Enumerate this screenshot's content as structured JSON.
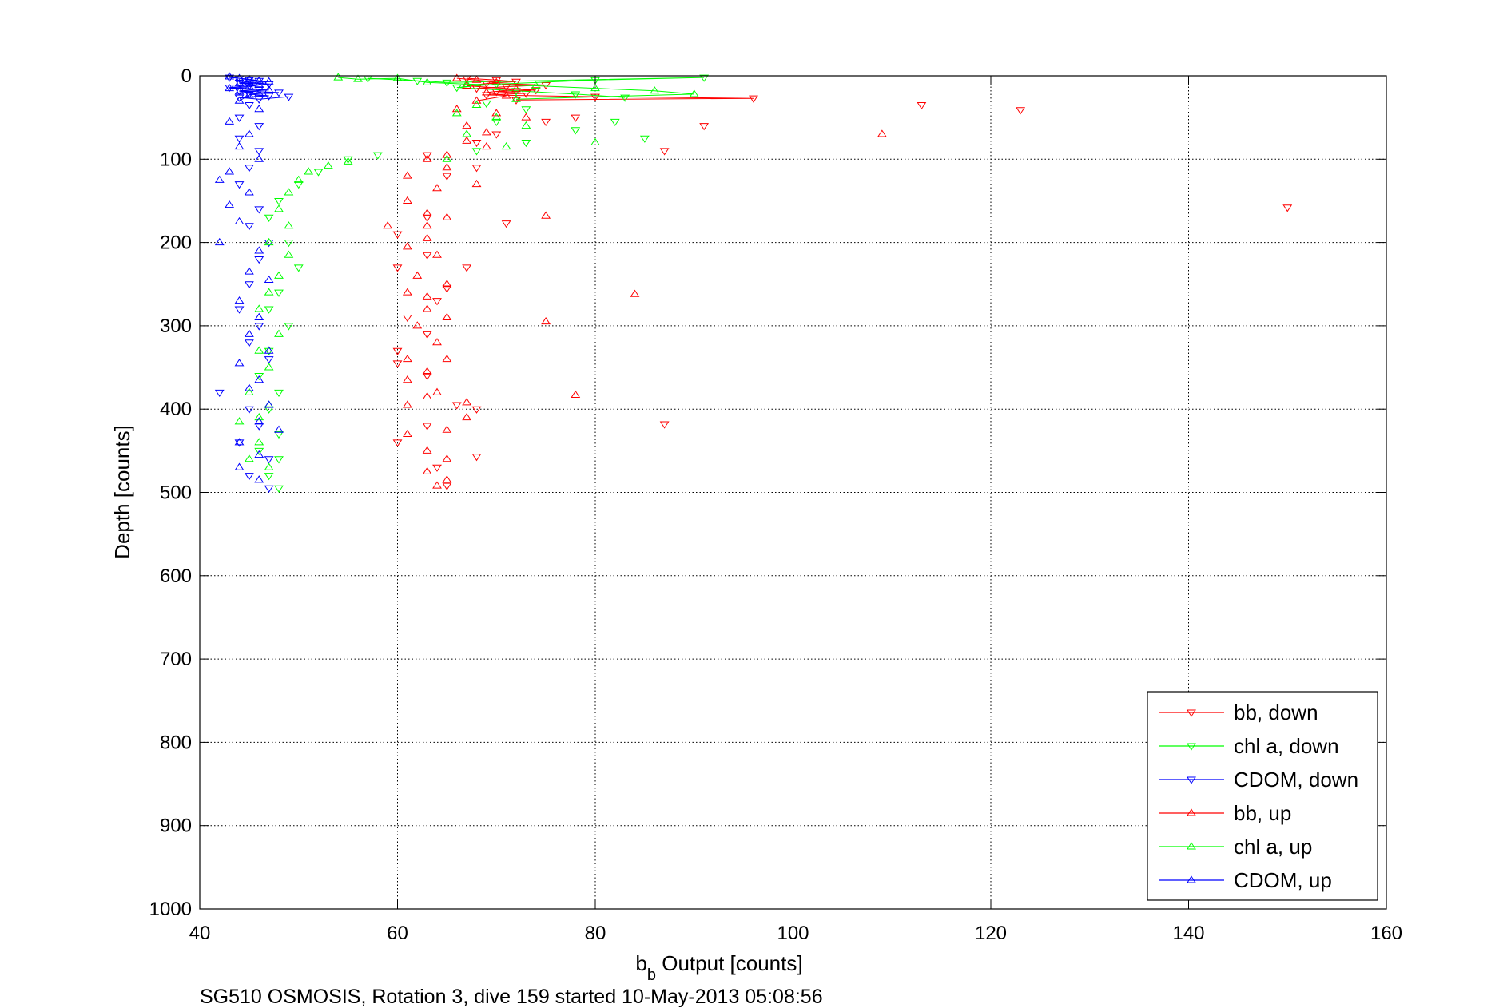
{
  "chart_data": {
    "type": "scatter",
    "xlabel_main": "b",
    "xlabel_sub": "b",
    "xlabel_rest": " Output [counts]",
    "ylabel": "Depth [counts]",
    "caption": "SG510 OSMOSIS, Rotation 3, dive 159 started 10-May-2013 05:08:56",
    "xlim": [
      40,
      160
    ],
    "ylim": [
      0,
      1000
    ],
    "y_reversed": true,
    "xticks": [
      "40",
      "60",
      "80",
      "100",
      "120",
      "140",
      "160"
    ],
    "yticks": [
      "0",
      "100",
      "200",
      "300",
      "400",
      "500",
      "600",
      "700",
      "800",
      "900",
      "1000"
    ],
    "grid": true,
    "legend_position": "bottom-right",
    "colors": {
      "red": "#ff0000",
      "green": "#00ff00",
      "blue": "#0000ff"
    },
    "series": [
      {
        "name": "bb, down",
        "color": "#ff0000",
        "marker": "triangle-down",
        "points": [
          [
            67,
            3
          ],
          [
            70,
            5
          ],
          [
            72,
            7
          ],
          [
            69,
            9
          ],
          [
            75,
            11
          ],
          [
            71,
            13
          ],
          [
            68,
            15
          ],
          [
            74,
            17
          ],
          [
            70,
            19
          ],
          [
            73,
            21
          ],
          [
            69,
            23
          ],
          [
            80,
            25
          ],
          [
            96,
            27
          ],
          [
            72,
            29
          ],
          [
            113,
            35
          ],
          [
            123,
            41
          ],
          [
            78,
            50
          ],
          [
            75,
            55
          ],
          [
            91,
            60
          ],
          [
            70,
            70
          ],
          [
            68,
            80
          ],
          [
            87,
            90
          ],
          [
            63,
            95
          ],
          [
            68,
            110
          ],
          [
            65,
            120
          ],
          [
            150,
            158
          ],
          [
            63,
            170
          ],
          [
            71,
            177
          ],
          [
            60,
            190
          ],
          [
            63,
            215
          ],
          [
            67,
            230
          ],
          [
            60,
            230
          ],
          [
            65,
            255
          ],
          [
            64,
            270
          ],
          [
            61,
            290
          ],
          [
            63,
            310
          ],
          [
            60,
            330
          ],
          [
            60,
            345
          ],
          [
            63,
            360
          ],
          [
            66,
            395
          ],
          [
            68,
            400
          ],
          [
            63,
            420
          ],
          [
            60,
            440
          ],
          [
            87,
            418
          ],
          [
            68,
            457
          ],
          [
            64,
            470
          ],
          [
            65,
            492
          ]
        ]
      },
      {
        "name": "chl a, down",
        "color": "#00ff00",
        "marker": "triangle-down",
        "points": [
          [
            57,
            3
          ],
          [
            62,
            6
          ],
          [
            65,
            8
          ],
          [
            91,
            2
          ],
          [
            80,
            5
          ],
          [
            70,
            10
          ],
          [
            66,
            14
          ],
          [
            72,
            18
          ],
          [
            78,
            22
          ],
          [
            83,
            26
          ],
          [
            69,
            33
          ],
          [
            73,
            40
          ],
          [
            70,
            55
          ],
          [
            82,
            55
          ],
          [
            78,
            65
          ],
          [
            85,
            75
          ],
          [
            73,
            80
          ],
          [
            68,
            90
          ],
          [
            58,
            95
          ],
          [
            55,
            100
          ],
          [
            52,
            115
          ],
          [
            50,
            130
          ],
          [
            48,
            150
          ],
          [
            47,
            170
          ],
          [
            49,
            200
          ],
          [
            50,
            230
          ],
          [
            48,
            260
          ],
          [
            47,
            280
          ],
          [
            49,
            300
          ],
          [
            47,
            330
          ],
          [
            46,
            360
          ],
          [
            48,
            380
          ],
          [
            47,
            400
          ],
          [
            48,
            430
          ],
          [
            46,
            450
          ],
          [
            48,
            460
          ],
          [
            47,
            480
          ],
          [
            48,
            495
          ]
        ]
      },
      {
        "name": "CDOM, down",
        "color": "#0000ff",
        "marker": "triangle-down",
        "points": [
          [
            43,
            2
          ],
          [
            44,
            3
          ],
          [
            45,
            5
          ],
          [
            46,
            6
          ],
          [
            44,
            8
          ],
          [
            47,
            10
          ],
          [
            45,
            12
          ],
          [
            43,
            14
          ],
          [
            46,
            16
          ],
          [
            44,
            18
          ],
          [
            48,
            20
          ],
          [
            45,
            22
          ],
          [
            47,
            24
          ],
          [
            44,
            26
          ],
          [
            46,
            28
          ],
          [
            49,
            25
          ],
          [
            45,
            35
          ],
          [
            44,
            50
          ],
          [
            46,
            60
          ],
          [
            44,
            75
          ],
          [
            46,
            90
          ],
          [
            45,
            110
          ],
          [
            44,
            130
          ],
          [
            46,
            160
          ],
          [
            45,
            180
          ],
          [
            47,
            200
          ],
          [
            46,
            220
          ],
          [
            45,
            250
          ],
          [
            44,
            280
          ],
          [
            46,
            300
          ],
          [
            45,
            320
          ],
          [
            47,
            340
          ],
          [
            42,
            380
          ],
          [
            45,
            400
          ],
          [
            46,
            420
          ],
          [
            44,
            440
          ],
          [
            47,
            460
          ],
          [
            45,
            480
          ],
          [
            47,
            495
          ]
        ]
      },
      {
        "name": "bb, up",
        "color": "#ff0000",
        "marker": "triangle-up",
        "points": [
          [
            66,
            3
          ],
          [
            68,
            5
          ],
          [
            70,
            8
          ],
          [
            67,
            12
          ],
          [
            72,
            16
          ],
          [
            69,
            20
          ],
          [
            71,
            24
          ],
          [
            68,
            30
          ],
          [
            66,
            40
          ],
          [
            70,
            45
          ],
          [
            73,
            50
          ],
          [
            67,
            60
          ],
          [
            69,
            68
          ],
          [
            67,
            78
          ],
          [
            69,
            85
          ],
          [
            65,
            95
          ],
          [
            63,
            100
          ],
          [
            65,
            110
          ],
          [
            61,
            120
          ],
          [
            64,
            135
          ],
          [
            68,
            130
          ],
          [
            61,
            150
          ],
          [
            63,
            165
          ],
          [
            75,
            168
          ],
          [
            59,
            180
          ],
          [
            63,
            195
          ],
          [
            61,
            205
          ],
          [
            64,
            215
          ],
          [
            62,
            240
          ],
          [
            65,
            250
          ],
          [
            61,
            260
          ],
          [
            84,
            262
          ],
          [
            63,
            280
          ],
          [
            65,
            290
          ],
          [
            62,
            300
          ],
          [
            75,
            295
          ],
          [
            64,
            320
          ],
          [
            61,
            340
          ],
          [
            65,
            340
          ],
          [
            63,
            355
          ],
          [
            61,
            365
          ],
          [
            64,
            380
          ],
          [
            78,
            383
          ],
          [
            61,
            395
          ],
          [
            67,
            392
          ],
          [
            67,
            410
          ],
          [
            65,
            425
          ],
          [
            61,
            430
          ],
          [
            63,
            450
          ],
          [
            65,
            460
          ],
          [
            63,
            475
          ],
          [
            65,
            485
          ],
          [
            64,
            492
          ],
          [
            109,
            70
          ],
          [
            63,
            385
          ],
          [
            63,
            265
          ],
          [
            63,
            180
          ],
          [
            65,
            170
          ]
        ]
      },
      {
        "name": "chl a, up",
        "color": "#00ff00",
        "marker": "triangle-up",
        "points": [
          [
            54,
            2
          ],
          [
            56,
            4
          ],
          [
            60,
            3
          ],
          [
            63,
            8
          ],
          [
            67,
            10
          ],
          [
            74,
            12
          ],
          [
            80,
            15
          ],
          [
            86,
            18
          ],
          [
            90,
            22
          ],
          [
            72,
            28
          ],
          [
            68,
            35
          ],
          [
            66,
            45
          ],
          [
            70,
            50
          ],
          [
            73,
            60
          ],
          [
            67,
            70
          ],
          [
            71,
            85
          ],
          [
            80,
            80
          ],
          [
            65,
            100
          ],
          [
            55,
            103
          ],
          [
            53,
            108
          ],
          [
            51,
            115
          ],
          [
            50,
            125
          ],
          [
            49,
            140
          ],
          [
            48,
            160
          ],
          [
            49,
            180
          ],
          [
            47,
            200
          ],
          [
            49,
            215
          ],
          [
            48,
            240
          ],
          [
            47,
            260
          ],
          [
            46,
            280
          ],
          [
            48,
            310
          ],
          [
            46,
            330
          ],
          [
            47,
            350
          ],
          [
            45,
            380
          ],
          [
            47,
            395
          ],
          [
            46,
            410
          ],
          [
            44,
            415
          ],
          [
            46,
            440
          ],
          [
            45,
            460
          ],
          [
            47,
            470
          ]
        ]
      },
      {
        "name": "CDOM, up",
        "color": "#0000ff",
        "marker": "triangle-up",
        "points": [
          [
            43,
            1
          ],
          [
            44,
            3
          ],
          [
            45,
            4
          ],
          [
            46,
            6
          ],
          [
            47,
            7
          ],
          [
            44,
            9
          ],
          [
            46,
            11
          ],
          [
            45,
            13
          ],
          [
            43,
            15
          ],
          [
            47,
            17
          ],
          [
            44,
            19
          ],
          [
            46,
            21
          ],
          [
            45,
            23
          ],
          [
            44,
            30
          ],
          [
            46,
            40
          ],
          [
            43,
            55
          ],
          [
            45,
            70
          ],
          [
            44,
            85
          ],
          [
            46,
            100
          ],
          [
            43,
            115
          ],
          [
            42,
            125
          ],
          [
            45,
            140
          ],
          [
            43,
            155
          ],
          [
            44,
            175
          ],
          [
            42,
            200
          ],
          [
            46,
            210
          ],
          [
            45,
            235
          ],
          [
            47,
            245
          ],
          [
            44,
            270
          ],
          [
            46,
            290
          ],
          [
            45,
            310
          ],
          [
            47,
            330
          ],
          [
            44,
            345
          ],
          [
            46,
            365
          ],
          [
            45,
            375
          ],
          [
            47,
            395
          ],
          [
            46,
            415
          ],
          [
            48,
            425
          ],
          [
            44,
            440
          ],
          [
            46,
            455
          ],
          [
            44,
            470
          ],
          [
            46,
            485
          ]
        ]
      }
    ]
  }
}
